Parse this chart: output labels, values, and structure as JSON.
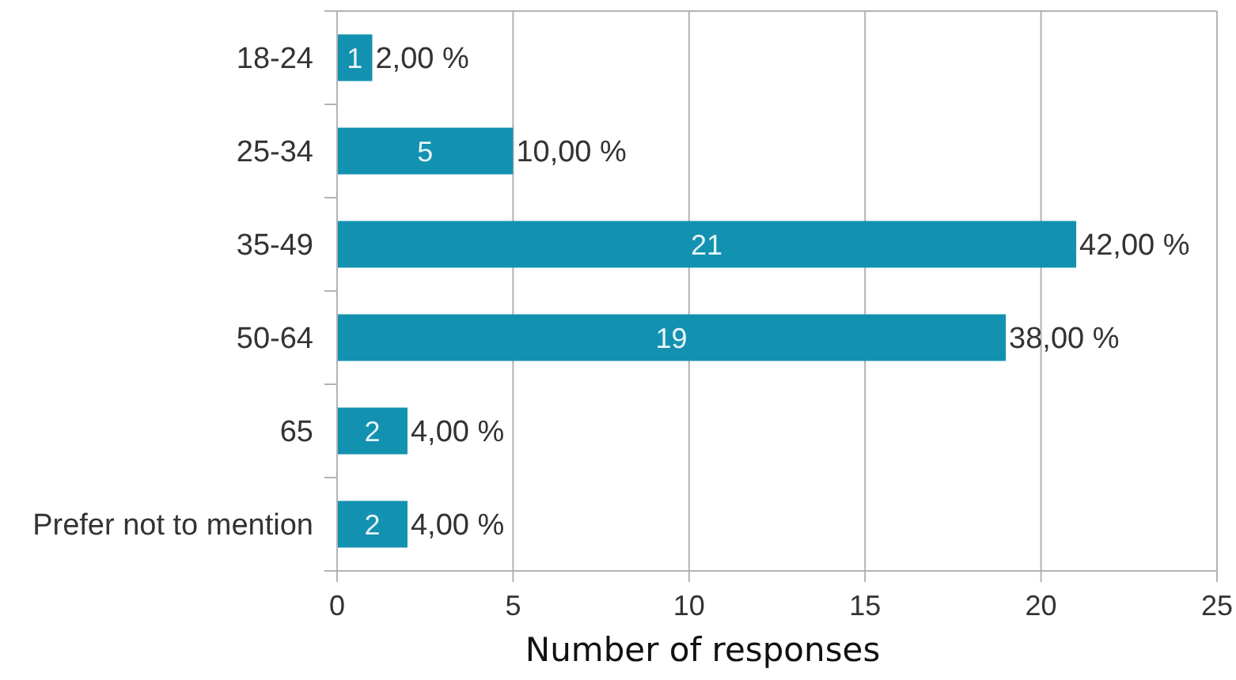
{
  "chart_data": {
    "type": "bar",
    "orientation": "horizontal",
    "categories": [
      "18-24",
      "25-34",
      "35-49",
      "50-64",
      "65",
      "Prefer not to mention"
    ],
    "values": [
      1,
      5,
      21,
      19,
      2,
      2
    ],
    "color": "#1391b0",
    "xlim": [
      0,
      25
    ],
    "xticks": [
      0,
      5,
      10,
      15,
      20,
      25
    ],
    "xlabel": "Number of responses",
    "grid": "x",
    "data_labels": true,
    "annotations": [
      {
        "text": "2,00 %",
        "x": 1,
        "y": "18-24"
      },
      {
        "text": "10,00 %",
        "x": 5,
        "y": "25-34"
      },
      {
        "text": "42,00 %",
        "x": 21,
        "y": "35-49"
      },
      {
        "text": "38,00 %",
        "x": 19,
        "y": "50-64"
      },
      {
        "text": "4,00 %",
        "x": 2,
        "y": "65"
      },
      {
        "text": "4,00 %",
        "x": 2,
        "y": "Prefer not to mention"
      }
    ]
  }
}
